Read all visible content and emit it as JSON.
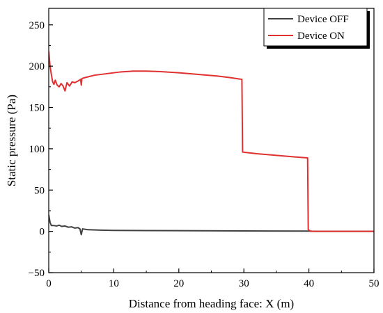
{
  "chart_data": {
    "type": "line",
    "title": "",
    "xlabel": "Distance from heading face: X (m)",
    "ylabel": "Static pressure (Pa)",
    "xlim": [
      0,
      50
    ],
    "ylim": [
      -50,
      270
    ],
    "x_ticks": [
      0,
      10,
      20,
      30,
      40,
      50
    ],
    "y_ticks": [
      -50,
      0,
      50,
      100,
      150,
      200,
      250
    ],
    "grid": false,
    "legend_position": "top-right",
    "series": [
      {
        "name": "Device OFF",
        "color": "#404040",
        "points": [
          [
            0,
            20
          ],
          [
            0.2,
            11
          ],
          [
            0.4,
            7
          ],
          [
            0.8,
            7
          ],
          [
            1.2,
            6.5
          ],
          [
            1.6,
            7.5
          ],
          [
            2.0,
            6
          ],
          [
            2.5,
            6.5
          ],
          [
            3.0,
            5
          ],
          [
            3.5,
            5.5
          ],
          [
            4.0,
            4
          ],
          [
            4.5,
            4.5
          ],
          [
            4.8,
            3
          ],
          [
            5.0,
            -4
          ],
          [
            5.2,
            3
          ],
          [
            6,
            2
          ],
          [
            8,
            1.5
          ],
          [
            10,
            1.2
          ],
          [
            15,
            1
          ],
          [
            20,
            0.8
          ],
          [
            30,
            0.5
          ],
          [
            40,
            0.3
          ],
          [
            41,
            0
          ],
          [
            50,
            0
          ]
        ]
      },
      {
        "name": "Device ON",
        "color": "#e03030",
        "points": [
          [
            0,
            218
          ],
          [
            0.2,
            200
          ],
          [
            0.4,
            190
          ],
          [
            0.6,
            181
          ],
          [
            0.8,
            178
          ],
          [
            1.0,
            183
          ],
          [
            1.3,
            177
          ],
          [
            1.6,
            175
          ],
          [
            1.9,
            179
          ],
          [
            2.2,
            176
          ],
          [
            2.5,
            170
          ],
          [
            2.8,
            180
          ],
          [
            3.2,
            176
          ],
          [
            3.6,
            181
          ],
          [
            4.0,
            180
          ],
          [
            4.5,
            182
          ],
          [
            4.9,
            184
          ],
          [
            5.0,
            177
          ],
          [
            5.1,
            185
          ],
          [
            5.5,
            186
          ],
          [
            7,
            189
          ],
          [
            9,
            191
          ],
          [
            11,
            193
          ],
          [
            13,
            194
          ],
          [
            15,
            194
          ],
          [
            17,
            193.5
          ],
          [
            20,
            192
          ],
          [
            23,
            190
          ],
          [
            26,
            188
          ],
          [
            28,
            186
          ],
          [
            29.7,
            184
          ],
          [
            29.8,
            96
          ],
          [
            32,
            94
          ],
          [
            35,
            92
          ],
          [
            38,
            90
          ],
          [
            39.8,
            89
          ],
          [
            39.9,
            2
          ],
          [
            40.3,
            0
          ],
          [
            45,
            0
          ],
          [
            50,
            0
          ]
        ]
      }
    ]
  }
}
